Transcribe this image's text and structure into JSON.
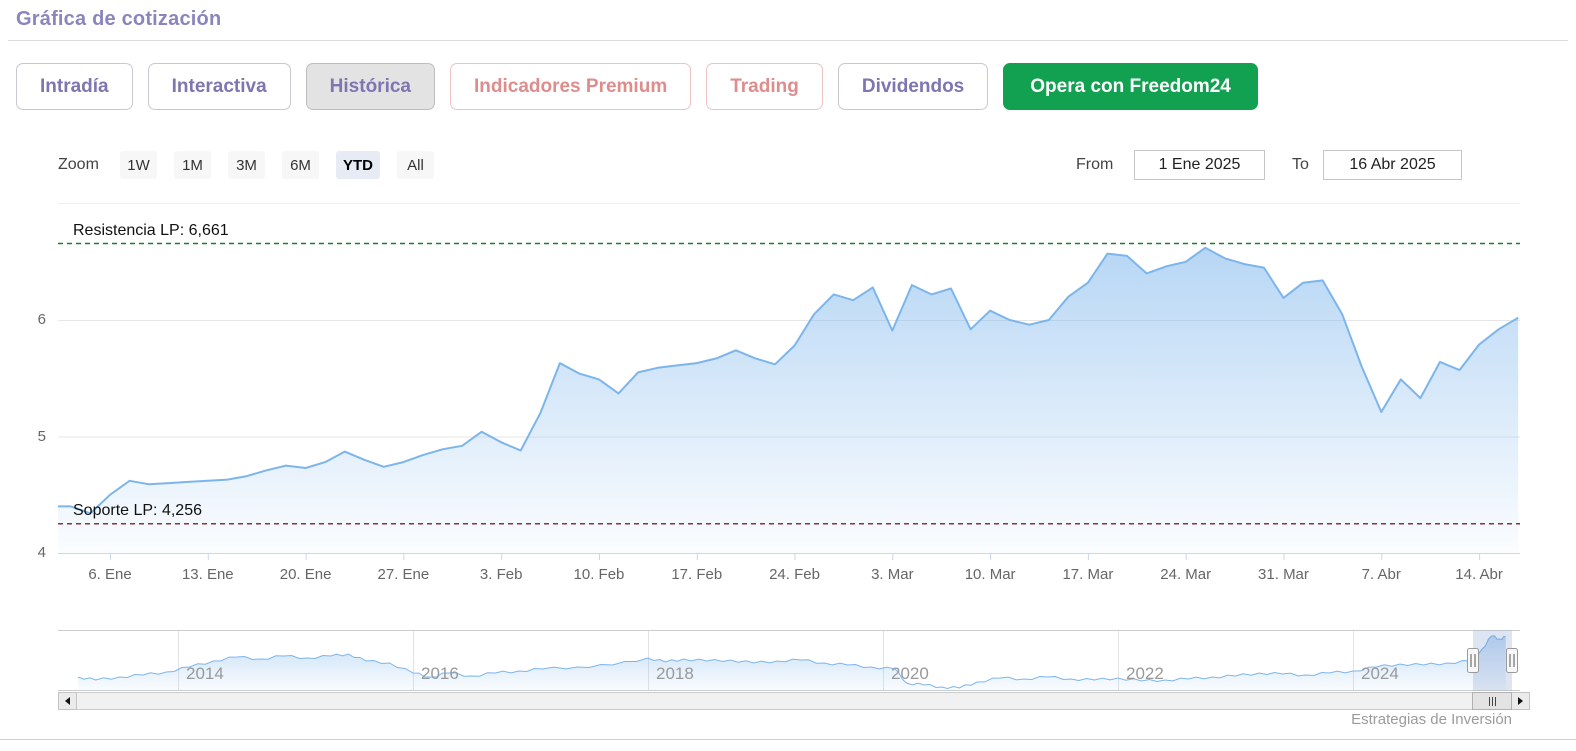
{
  "header": {
    "title": "Gráfica de cotización"
  },
  "tabs": [
    {
      "label": "Intradía",
      "style": "default"
    },
    {
      "label": "Interactiva",
      "style": "default"
    },
    {
      "label": "Histórica",
      "style": "active"
    },
    {
      "label": "Indicadores Premium",
      "style": "premium"
    },
    {
      "label": "Trading",
      "style": "premium"
    },
    {
      "label": "Dividendos",
      "style": "default"
    },
    {
      "label": "Opera con Freedom24",
      "style": "cta"
    }
  ],
  "range_selector": {
    "zoom_label": "Zoom",
    "buttons": [
      {
        "label": "1W",
        "selected": false
      },
      {
        "label": "1M",
        "selected": false
      },
      {
        "label": "3M",
        "selected": false
      },
      {
        "label": "6M",
        "selected": false
      },
      {
        "label": "YTD",
        "selected": true
      },
      {
        "label": "All",
        "selected": false
      }
    ],
    "from_label": "From",
    "from_value": "1 Ene 2025",
    "to_label": "To",
    "to_value": "16 Abr 2025"
  },
  "chart_data": {
    "type": "area",
    "title": "Gráfica de cotización",
    "xlabel": "",
    "ylabel": "",
    "grid": true,
    "ylim": [
      3.95,
      6.95
    ],
    "yticks": [
      4,
      5,
      6
    ],
    "xticks": [
      "6. Ene",
      "13. Ene",
      "20. Ene",
      "27. Ene",
      "3. Feb",
      "10. Feb",
      "17. Feb",
      "24. Feb",
      "3. Mar",
      "10. Mar",
      "17. Mar",
      "24. Mar",
      "31. Mar",
      "7. Abr",
      "14. Abr"
    ],
    "xtick_indices": [
      2,
      7,
      12,
      17,
      22,
      27,
      32,
      37,
      42,
      47,
      52,
      57,
      62,
      67,
      72
    ],
    "x": [
      "2 Ene",
      "3 Ene",
      "6 Ene",
      "7 Ene",
      "8 Ene",
      "9 Ene",
      "10 Ene",
      "13 Ene",
      "14 Ene",
      "15 Ene",
      "16 Ene",
      "17 Ene",
      "20 Ene",
      "21 Ene",
      "22 Ene",
      "23 Ene",
      "24 Ene",
      "27 Ene",
      "28 Ene",
      "29 Ene",
      "30 Ene",
      "31 Ene",
      "3 Feb",
      "4 Feb",
      "5 Feb",
      "6 Feb",
      "7 Feb",
      "10 Feb",
      "11 Feb",
      "12 Feb",
      "13 Feb",
      "14 Feb",
      "17 Feb",
      "18 Feb",
      "19 Feb",
      "20 Feb",
      "21 Feb",
      "24 Feb",
      "25 Feb",
      "26 Feb",
      "27 Feb",
      "28 Feb",
      "3 Mar",
      "4 Mar",
      "5 Mar",
      "6 Mar",
      "7 Mar",
      "10 Mar",
      "11 Mar",
      "12 Mar",
      "13 Mar",
      "14 Mar",
      "17 Mar",
      "18 Mar",
      "19 Mar",
      "20 Mar",
      "21 Mar",
      "24 Mar",
      "25 Mar",
      "26 Mar",
      "27 Mar",
      "28 Mar",
      "31 Mar",
      "1 Abr",
      "2 Abr",
      "3 Abr",
      "4 Abr",
      "7 Abr",
      "8 Abr",
      "9 Abr",
      "10 Abr",
      "11 Abr",
      "14 Abr",
      "15 Abr",
      "16 Abr"
    ],
    "values": [
      4.4,
      4.34,
      4.5,
      4.62,
      4.59,
      4.6,
      4.61,
      4.62,
      4.63,
      4.66,
      4.71,
      4.75,
      4.73,
      4.78,
      4.87,
      4.8,
      4.74,
      4.78,
      4.84,
      4.89,
      4.92,
      5.04,
      4.95,
      4.88,
      5.2,
      5.63,
      5.54,
      5.49,
      5.37,
      5.55,
      5.59,
      5.61,
      5.63,
      5.67,
      5.74,
      5.67,
      5.62,
      5.78,
      6.05,
      6.22,
      6.17,
      6.28,
      5.91,
      6.3,
      6.22,
      6.27,
      5.92,
      6.08,
      6.0,
      5.96,
      6.0,
      6.2,
      6.32,
      6.57,
      6.55,
      6.4,
      6.46,
      6.5,
      6.62,
      6.53,
      6.48,
      6.45,
      6.19,
      6.32,
      6.34,
      6.05,
      5.6,
      5.21,
      5.49,
      5.33,
      5.64,
      5.57,
      5.79,
      5.92,
      6.02
    ],
    "plotlines": [
      {
        "label": "Resistencia LP: 6,661",
        "value": 6.661,
        "color": "#1f7a33",
        "style": "dashed"
      },
      {
        "label": "Soporte LP: 4,256",
        "value": 4.256,
        "color": "#8f2727",
        "style": "dashed"
      }
    ],
    "navigator": {
      "type": "area",
      "xticks": [
        "2014",
        "2016",
        "2018",
        "2020",
        "2022",
        "2024"
      ],
      "xtick_years": [
        2014,
        2016,
        2018,
        2020,
        2022,
        2024
      ],
      "x": [
        2013.15,
        2013.3,
        2013.5,
        2013.7,
        2013.9,
        2014.1,
        2014.3,
        2014.5,
        2014.7,
        2014.9,
        2015.1,
        2015.3,
        2015.45,
        2015.6,
        2015.8,
        2016.0,
        2016.15,
        2016.3,
        2016.5,
        2016.7,
        2016.9,
        2017.1,
        2017.4,
        2017.7,
        2018.0,
        2018.15,
        2018.3,
        2018.5,
        2018.7,
        2018.9,
        2019.1,
        2019.3,
        2019.5,
        2019.7,
        2019.9,
        2020.1,
        2020.2,
        2020.35,
        2020.5,
        2020.65,
        2020.8,
        2021.0,
        2021.2,
        2021.4,
        2021.6,
        2021.8,
        2022.0,
        2022.2,
        2022.4,
        2022.6,
        2022.8,
        2023.0,
        2023.2,
        2023.4,
        2023.6,
        2023.8,
        2024.0,
        2024.2,
        2024.4,
        2024.6,
        2024.8,
        2025.0,
        2025.1,
        2025.18,
        2025.25,
        2025.3
      ],
      "values": [
        4.5,
        4.35,
        4.5,
        4.6,
        4.75,
        5.0,
        5.3,
        5.5,
        5.4,
        5.55,
        5.45,
        5.55,
        5.65,
        5.3,
        5.2,
        4.7,
        4.5,
        4.7,
        4.55,
        4.7,
        4.8,
        4.9,
        5.0,
        5.1,
        5.45,
        5.25,
        5.4,
        5.3,
        5.35,
        5.2,
        5.3,
        5.35,
        5.2,
        5.1,
        5.0,
        4.9,
        4.2,
        4.1,
        4.0,
        3.95,
        4.25,
        4.45,
        4.4,
        4.5,
        4.4,
        4.35,
        4.45,
        4.3,
        4.35,
        4.4,
        4.5,
        4.55,
        4.7,
        4.65,
        4.6,
        4.7,
        4.8,
        5.0,
        5.15,
        5.1,
        5.2,
        5.3,
        5.9,
        6.55,
        6.4,
        6.5
      ],
      "selected_range": [
        "1 Ene 2025",
        "16 Abr 2025"
      ]
    }
  },
  "credit": "Estrategias de Inversión",
  "colors": {
    "accent_purple": "#7d76b0",
    "title_purple": "#8b85bd",
    "premium_red": "#df8c8c",
    "cta_green": "#12a150",
    "series_blue": "#7cb5ec",
    "resistance_green": "#1f7a33",
    "support_red": "#8f2727",
    "selected_zoom_bg": "#e6ebf4",
    "navigator_mask": "rgba(102,133,194,0.22)"
  },
  "icons": {
    "scroll_left": "left-triangle",
    "scroll_right": "right-triangle",
    "thumb_grip": "three-bars",
    "navigator_handle": "double-bar"
  }
}
